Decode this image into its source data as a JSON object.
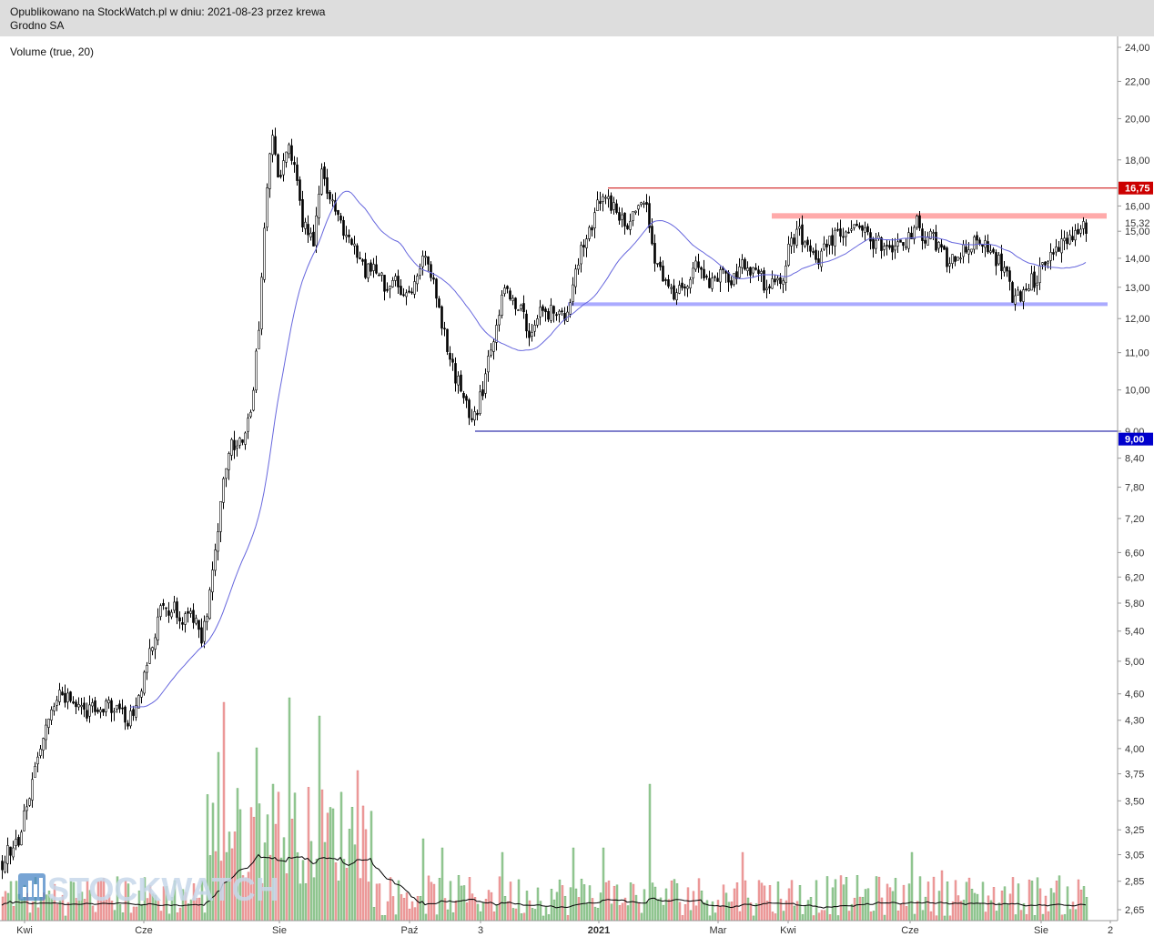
{
  "header": {
    "line1": "Opublikowano na StockWatch.pl w dniu: 2021-08-23 przez krewa",
    "line2": "Grodno SA"
  },
  "chart_data": {
    "type": "candlestick",
    "indicator_label": "Volume (true, 20)",
    "watermark": "STOCKWATCH",
    "y_axis": {
      "ticks": [
        {
          "v": 24.0,
          "label": "24,00"
        },
        {
          "v": 22.0,
          "label": "22,00"
        },
        {
          "v": 20.0,
          "label": "20,00"
        },
        {
          "v": 18.0,
          "label": "18,00"
        },
        {
          "v": 16.0,
          "label": "16,00"
        },
        {
          "v": 15.0,
          "label": "15,00"
        },
        {
          "v": 14.0,
          "label": "14,00"
        },
        {
          "v": 13.0,
          "label": "13,00"
        },
        {
          "v": 12.0,
          "label": "12,00"
        },
        {
          "v": 11.0,
          "label": "11,00"
        },
        {
          "v": 10.0,
          "label": "10,00"
        },
        {
          "v": 9.0,
          "label": "9,00"
        },
        {
          "v": 8.4,
          "label": "8,40"
        },
        {
          "v": 7.8,
          "label": "7,80"
        },
        {
          "v": 7.2,
          "label": "7,20"
        },
        {
          "v": 6.6,
          "label": "6,60"
        },
        {
          "v": 6.2,
          "label": "6,20"
        },
        {
          "v": 5.8,
          "label": "5,80"
        },
        {
          "v": 5.4,
          "label": "5,40"
        },
        {
          "v": 5.0,
          "label": "5,00"
        },
        {
          "v": 4.6,
          "label": "4,60"
        },
        {
          "v": 4.3,
          "label": "4,30"
        },
        {
          "v": 4.0,
          "label": "4,00"
        },
        {
          "v": 3.75,
          "label": "3,75"
        },
        {
          "v": 3.5,
          "label": "3,50"
        },
        {
          "v": 3.25,
          "label": "3,25"
        },
        {
          "v": 3.05,
          "label": "3,05"
        },
        {
          "v": 2.85,
          "label": "2,85"
        },
        {
          "v": 2.65,
          "label": "2,65"
        }
      ],
      "scale": "log",
      "range": [
        2.6,
        24.5
      ]
    },
    "x_axis": {
      "ticks": [
        {
          "label": "Kwi",
          "bold": false
        },
        {
          "label": "Cze",
          "bold": false
        },
        {
          "label": "Sie",
          "bold": false
        },
        {
          "label": "Paź",
          "bold": false
        },
        {
          "label": "3",
          "bold": false
        },
        {
          "label": "2021",
          "bold": true
        },
        {
          "label": "Mar",
          "bold": false
        },
        {
          "label": "Kwi",
          "bold": false
        },
        {
          "label": "Cze",
          "bold": false
        },
        {
          "label": "Sie",
          "bold": false
        },
        {
          "label": "2",
          "bold": false
        }
      ]
    },
    "last_price": {
      "value": 15.32,
      "label": "15,32"
    },
    "resistance_line": {
      "value": 16.75,
      "label": "16,75",
      "color": "#cc0000"
    },
    "support_line": {
      "value": 9.0,
      "label": "9,00",
      "color": "#000099"
    },
    "resistance_zone": {
      "value": 15.6,
      "color": "#ffaaaa"
    },
    "support_zone": {
      "value": 12.45,
      "color": "#aaaaff"
    },
    "anchors": [
      [
        2.0,
        3.0
      ],
      [
        22.0,
        3.2
      ],
      [
        48.0,
        4.1
      ],
      [
        65.0,
        4.6
      ],
      [
        90.0,
        4.4
      ],
      [
        120.0,
        4.5
      ],
      [
        140.0,
        4.3
      ],
      [
        150.0,
        4.5
      ],
      [
        165.0,
        5.2
      ],
      [
        180.0,
        5.8
      ],
      [
        200.0,
        5.6
      ],
      [
        210.0,
        5.7
      ],
      [
        222.0,
        5.3
      ],
      [
        232.0,
        6.1
      ],
      [
        242.0,
        7.5
      ],
      [
        250.0,
        8.6
      ],
      [
        262.0,
        8.7
      ],
      [
        276.0,
        9.3
      ],
      [
        281.0,
        10.8
      ],
      [
        286.0,
        12.5
      ],
      [
        292.0,
        16.0
      ],
      [
        298.0,
        19.5
      ],
      [
        306.0,
        17.0
      ],
      [
        318.0,
        18.5
      ],
      [
        332.0,
        15.5
      ],
      [
        344.0,
        14.6
      ],
      [
        354.0,
        17.5
      ],
      [
        368.0,
        15.5
      ],
      [
        380.0,
        15.0
      ],
      [
        392.0,
        14.2
      ],
      [
        400.0,
        13.5
      ],
      [
        410.0,
        14.0
      ],
      [
        422.0,
        13.0
      ],
      [
        432.0,
        13.5
      ],
      [
        442.0,
        12.6
      ],
      [
        455.0,
        13.2
      ],
      [
        465.0,
        14.2
      ],
      [
        478.0,
        12.8
      ],
      [
        488.0,
        11.5
      ],
      [
        500.0,
        10.4
      ],
      [
        510.0,
        9.7
      ],
      [
        518.0,
        9.2
      ],
      [
        525.0,
        9.6
      ],
      [
        532.0,
        10.2
      ],
      [
        542.0,
        11.4
      ],
      [
        552.0,
        13.0
      ],
      [
        565.0,
        12.5
      ],
      [
        575.0,
        12.0
      ],
      [
        585.0,
        11.4
      ],
      [
        595.0,
        12.3
      ],
      [
        610.0,
        12.2
      ],
      [
        622.0,
        12.0
      ],
      [
        630.0,
        13.5
      ],
      [
        640.0,
        14.5
      ],
      [
        650.0,
        15.2
      ],
      [
        660.0,
        16.6
      ],
      [
        670.0,
        16.0
      ],
      [
        685.0,
        15.3
      ],
      [
        700.0,
        15.6
      ],
      [
        708.0,
        16.2
      ],
      [
        715.0,
        14.5
      ],
      [
        722.0,
        13.6
      ],
      [
        732.0,
        13.2
      ],
      [
        742.0,
        12.6
      ],
      [
        752.0,
        13.1
      ],
      [
        765.0,
        13.7
      ],
      [
        778.0,
        13.0
      ],
      [
        792.0,
        13.4
      ],
      [
        805.0,
        13.3
      ],
      [
        816.0,
        14.0
      ],
      [
        826.0,
        13.6
      ],
      [
        838.0,
        13.2
      ],
      [
        852.0,
        13.0
      ],
      [
        860.0,
        13.5
      ],
      [
        866.0,
        14.3
      ],
      [
        875.0,
        15.0
      ],
      [
        885.0,
        14.7
      ],
      [
        898.0,
        14.0
      ],
      [
        908.0,
        14.3
      ],
      [
        918.0,
        15.0
      ],
      [
        930.0,
        14.8
      ],
      [
        942.0,
        15.2
      ],
      [
        950.0,
        14.9
      ],
      [
        962.0,
        14.5
      ],
      [
        975.0,
        14.6
      ],
      [
        990.0,
        14.4
      ],
      [
        1000.0,
        14.8
      ],
      [
        1006.0,
        15.6
      ],
      [
        1012.0,
        14.8
      ],
      [
        1025.0,
        14.7
      ],
      [
        1035.0,
        14.3
      ],
      [
        1042.0,
        13.6
      ],
      [
        1050.0,
        14.2
      ],
      [
        1062.0,
        14.4
      ],
      [
        1075.0,
        14.6
      ],
      [
        1085.0,
        14.3
      ],
      [
        1098.0,
        13.9
      ],
      [
        1106.0,
        13.4
      ],
      [
        1113.0,
        12.5
      ],
      [
        1122.0,
        12.8
      ],
      [
        1130.0,
        13.2
      ],
      [
        1140.0,
        13.3
      ],
      [
        1148.0,
        13.9
      ],
      [
        1158.0,
        14.3
      ],
      [
        1168.0,
        14.6
      ],
      [
        1176.0,
        15.0
      ],
      [
        1185.0,
        14.9
      ],
      [
        1195.0,
        15.3
      ]
    ]
  }
}
